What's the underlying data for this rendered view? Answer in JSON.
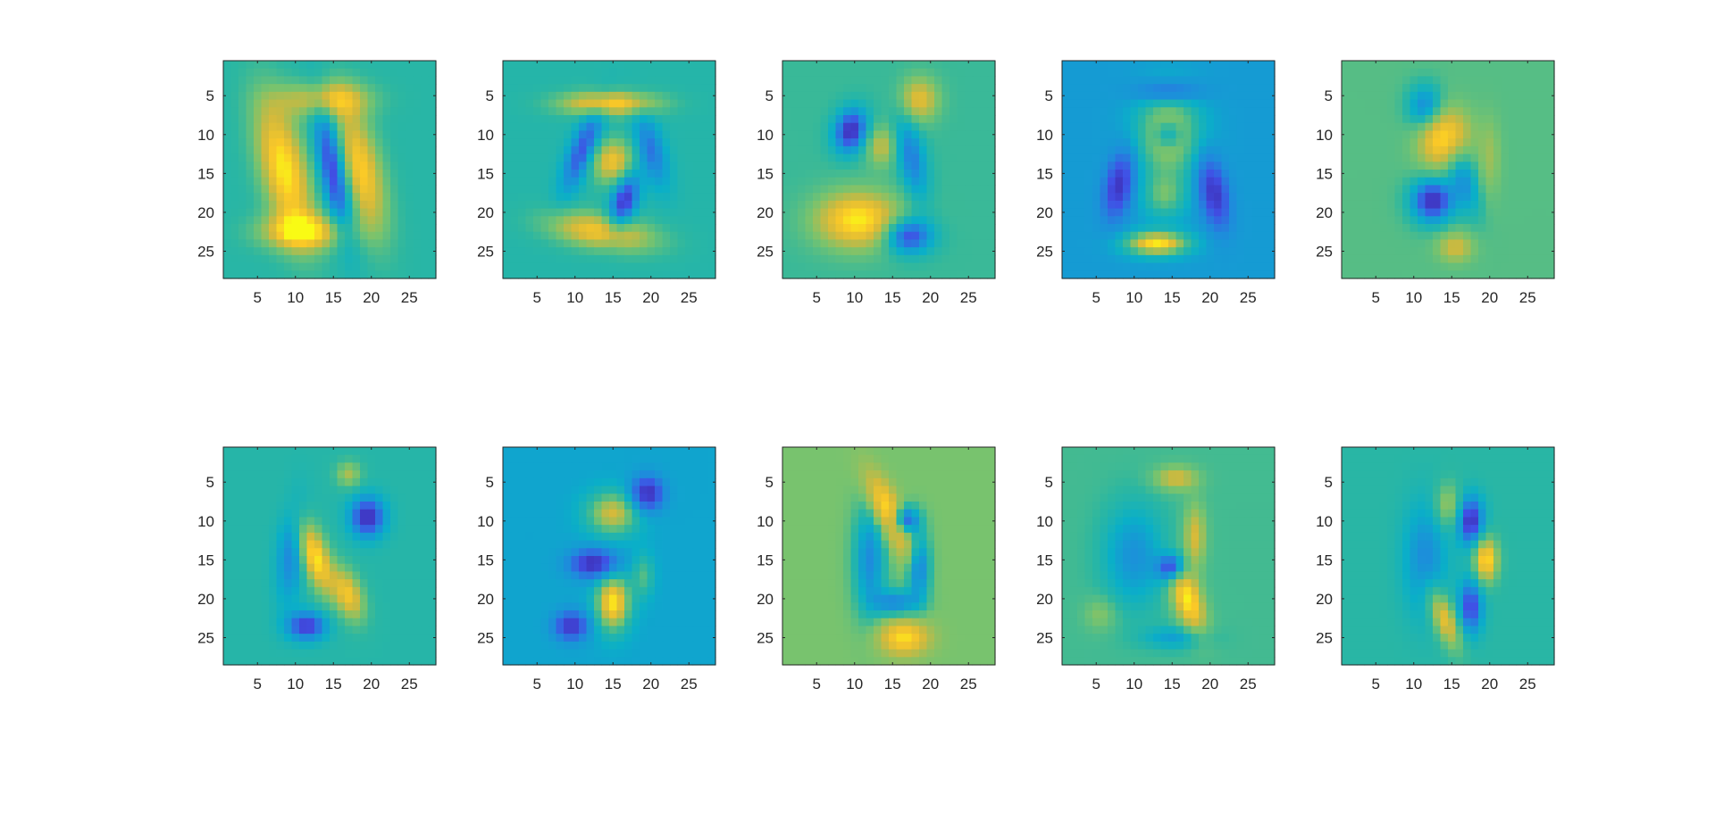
{
  "chart_data": [
    {
      "type": "heatmap",
      "panel": 1,
      "x_ticks": [
        5,
        10,
        15,
        20,
        25
      ],
      "y_ticks": [
        5,
        10,
        15,
        20,
        25
      ],
      "xlim": [
        0.5,
        28.5
      ],
      "ylim": [
        0.5,
        28.5
      ],
      "y_reversed": true,
      "background_color": "#2bb3a8",
      "blobs": [
        {
          "x": 8.5,
          "y": 14.5,
          "sx": 2.2,
          "sy": 6.5,
          "r": -0.25,
          "a": 1.0
        },
        {
          "x": 18.5,
          "y": 14.5,
          "sx": 2.0,
          "sy": 6.0,
          "r": -0.25,
          "a": 0.9
        },
        {
          "x": 14.0,
          "y": 5.5,
          "sx": 4.0,
          "sy": 1.6,
          "r": 0,
          "a": 0.75
        },
        {
          "x": 11.0,
          "y": 22.5,
          "sx": 4.0,
          "sy": 1.6,
          "r": 0,
          "a": 0.85
        },
        {
          "x": 15.0,
          "y": 14.5,
          "sx": 1.3,
          "sy": 6.0,
          "r": -0.2,
          "a": -1.0
        }
      ]
    },
    {
      "type": "heatmap",
      "panel": 2,
      "x_ticks": [
        5,
        10,
        15,
        20,
        25
      ],
      "y_ticks": [
        5,
        10,
        15,
        20,
        25
      ],
      "xlim": [
        0.5,
        28.5
      ],
      "ylim": [
        0.5,
        28.5
      ],
      "y_reversed": true,
      "background_color": "#25b2aa",
      "blobs": [
        {
          "x": 14.5,
          "y": 6.0,
          "sx": 4.5,
          "sy": 1.1,
          "r": 0,
          "a": 0.95
        },
        {
          "x": 15.0,
          "y": 13.5,
          "sx": 2.0,
          "sy": 2.0,
          "r": 0,
          "a": 0.8
        },
        {
          "x": 13.5,
          "y": 22.5,
          "sx": 5.0,
          "sy": 1.6,
          "r": 0.15,
          "a": 0.85
        },
        {
          "x": 11.0,
          "y": 12.0,
          "sx": 1.2,
          "sy": 4.0,
          "r": 0.4,
          "a": -0.8
        },
        {
          "x": 16.5,
          "y": 18.5,
          "sx": 1.2,
          "sy": 2.8,
          "r": 0.3,
          "a": -0.95
        },
        {
          "x": 20.0,
          "y": 12.0,
          "sx": 1.3,
          "sy": 3.5,
          "r": -0.3,
          "a": -0.6
        }
      ]
    },
    {
      "type": "heatmap",
      "panel": 3,
      "x_ticks": [
        5,
        10,
        15,
        20,
        25
      ],
      "y_ticks": [
        5,
        10,
        15,
        20,
        25
      ],
      "xlim": [
        0.5,
        28.5
      ],
      "ylim": [
        0.5,
        28.5
      ],
      "y_reversed": true,
      "background_color": "#3cb99a",
      "blobs": [
        {
          "x": 9.5,
          "y": 9.5,
          "sx": 1.5,
          "sy": 2.0,
          "r": 0.3,
          "a": -1.0
        },
        {
          "x": 18.5,
          "y": 5.5,
          "sx": 1.8,
          "sy": 2.0,
          "r": 0,
          "a": 0.7
        },
        {
          "x": 17.5,
          "y": 13.0,
          "sx": 1.3,
          "sy": 4.0,
          "r": -0.2,
          "a": -0.6
        },
        {
          "x": 10.5,
          "y": 21.0,
          "sx": 4.0,
          "sy": 2.6,
          "r": 0,
          "a": 1.0
        },
        {
          "x": 17.0,
          "y": 23.0,
          "sx": 2.2,
          "sy": 1.6,
          "r": 0,
          "a": -0.95
        },
        {
          "x": 13.5,
          "y": 11.5,
          "sx": 1.3,
          "sy": 1.8,
          "r": 0,
          "a": 0.55
        }
      ]
    },
    {
      "type": "heatmap",
      "panel": 4,
      "x_ticks": [
        5,
        10,
        15,
        20,
        25
      ],
      "y_ticks": [
        5,
        10,
        15,
        20,
        25
      ],
      "xlim": [
        0.5,
        28.5
      ],
      "ylim": [
        0.5,
        28.5
      ],
      "y_reversed": true,
      "background_color": "#0c94d4",
      "blobs": [
        {
          "x": 14.5,
          "y": 10.0,
          "sx": 3.0,
          "sy": 4.0,
          "r": 0,
          "a": 0.75
        },
        {
          "x": 13.0,
          "y": 24.0,
          "sx": 3.0,
          "sy": 1.1,
          "r": 0,
          "a": 1.0
        },
        {
          "x": 14.5,
          "y": 10.0,
          "sx": 1.2,
          "sy": 1.2,
          "r": 0,
          "a": -0.5
        },
        {
          "x": 8.0,
          "y": 16.5,
          "sx": 1.3,
          "sy": 3.0,
          "r": 0.2,
          "a": -0.9
        },
        {
          "x": 20.5,
          "y": 17.5,
          "sx": 1.3,
          "sy": 3.2,
          "r": -0.2,
          "a": -0.9
        },
        {
          "x": 14.5,
          "y": 4.5,
          "sx": 3.0,
          "sy": 1.0,
          "r": 0,
          "a": -0.55
        },
        {
          "x": 14.0,
          "y": 18.0,
          "sx": 2.0,
          "sy": 2.0,
          "r": 0,
          "a": 0.45
        }
      ]
    },
    {
      "type": "heatmap",
      "panel": 5,
      "x_ticks": [
        5,
        10,
        15,
        20,
        25
      ],
      "y_ticks": [
        5,
        10,
        15,
        20,
        25
      ],
      "xlim": [
        0.5,
        28.5
      ],
      "ylim": [
        0.5,
        28.5
      ],
      "y_reversed": true,
      "background_color": "#5bbf8a",
      "blobs": [
        {
          "x": 14.0,
          "y": 10.5,
          "sx": 2.2,
          "sy": 2.6,
          "r": 0.3,
          "a": 1.0
        },
        {
          "x": 12.5,
          "y": 18.5,
          "sx": 2.0,
          "sy": 2.0,
          "r": 0,
          "a": -1.0
        },
        {
          "x": 11.5,
          "y": 6.5,
          "sx": 1.6,
          "sy": 2.0,
          "r": 0,
          "a": -0.6
        },
        {
          "x": 16.5,
          "y": 15.5,
          "sx": 1.3,
          "sy": 3.5,
          "r": -0.3,
          "a": -0.5
        },
        {
          "x": 15.5,
          "y": 24.5,
          "sx": 1.6,
          "sy": 1.3,
          "r": 0,
          "a": 0.55
        },
        {
          "x": 20.0,
          "y": 13.0,
          "sx": 1.0,
          "sy": 3.5,
          "r": 0,
          "a": 0.3
        }
      ]
    },
    {
      "type": "heatmap",
      "panel": 6,
      "x_ticks": [
        5,
        10,
        15,
        20,
        25
      ],
      "y_ticks": [
        5,
        10,
        15,
        20,
        25
      ],
      "xlim": [
        0.5,
        28.5
      ],
      "ylim": [
        0.5,
        28.5
      ],
      "y_reversed": true,
      "background_color": "#2cb3ad",
      "blobs": [
        {
          "x": 12.5,
          "y": 14.5,
          "sx": 1.3,
          "sy": 3.5,
          "r": -0.35,
          "a": 1.0
        },
        {
          "x": 17.0,
          "y": 19.5,
          "sx": 1.3,
          "sy": 2.5,
          "r": -0.35,
          "a": 0.8
        },
        {
          "x": 19.5,
          "y": 9.5,
          "sx": 1.6,
          "sy": 1.8,
          "r": 0,
          "a": -1.0
        },
        {
          "x": 11.5,
          "y": 23.5,
          "sx": 1.8,
          "sy": 1.3,
          "r": 0,
          "a": -0.9
        },
        {
          "x": 9.5,
          "y": 14.0,
          "sx": 1.3,
          "sy": 4.5,
          "r": 0.1,
          "a": -0.55
        },
        {
          "x": 17.0,
          "y": 4.0,
          "sx": 1.2,
          "sy": 1.2,
          "r": 0,
          "a": 0.5
        }
      ]
    },
    {
      "type": "heatmap",
      "panel": 7,
      "x_ticks": [
        5,
        10,
        15,
        20,
        25
      ],
      "y_ticks": [
        5,
        10,
        15,
        20,
        25
      ],
      "xlim": [
        0.5,
        28.5
      ],
      "ylim": [
        0.5,
        28.5
      ],
      "y_reversed": true,
      "background_color": "#0fa4cf",
      "blobs": [
        {
          "x": 19.5,
          "y": 6.5,
          "sx": 1.5,
          "sy": 1.6,
          "r": 0,
          "a": -1.0
        },
        {
          "x": 15.0,
          "y": 9.0,
          "sx": 2.5,
          "sy": 2.0,
          "r": 0,
          "a": 0.75
        },
        {
          "x": 12.5,
          "y": 15.5,
          "sx": 2.2,
          "sy": 1.3,
          "r": 0,
          "a": -1.0
        },
        {
          "x": 15.0,
          "y": 20.5,
          "sx": 1.6,
          "sy": 2.6,
          "r": 0,
          "a": 1.0
        },
        {
          "x": 9.5,
          "y": 23.5,
          "sx": 1.6,
          "sy": 1.3,
          "r": 0,
          "a": -0.9
        },
        {
          "x": 19.0,
          "y": 17.0,
          "sx": 1.0,
          "sy": 2.0,
          "r": 0,
          "a": 0.4
        }
      ]
    },
    {
      "type": "heatmap",
      "panel": 8,
      "x_ticks": [
        5,
        10,
        15,
        20,
        25
      ],
      "y_ticks": [
        5,
        10,
        15,
        20,
        25
      ],
      "xlim": [
        0.5,
        28.5
      ],
      "ylim": [
        0.5,
        28.5
      ],
      "y_reversed": true,
      "background_color": "#7dc373",
      "blobs": [
        {
          "x": 14.5,
          "y": 9.0,
          "sx": 1.2,
          "sy": 3.8,
          "r": -0.45,
          "a": 1.0
        },
        {
          "x": 16.5,
          "y": 10.0,
          "sx": 1.3,
          "sy": 1.3,
          "r": 0,
          "a": -1.0
        },
        {
          "x": 16.5,
          "y": 25.0,
          "sx": 2.2,
          "sy": 1.5,
          "r": 0,
          "a": 0.9
        },
        {
          "x": 18.5,
          "y": 16.0,
          "sx": 1.0,
          "sy": 3.0,
          "r": 0,
          "a": -0.7
        },
        {
          "x": 12.0,
          "y": 15.0,
          "sx": 1.5,
          "sy": 5.0,
          "r": 0,
          "a": -0.6
        },
        {
          "x": 15.5,
          "y": 20.5,
          "sx": 2.0,
          "sy": 1.2,
          "r": 0,
          "a": -0.6
        }
      ]
    },
    {
      "type": "heatmap",
      "panel": 9,
      "x_ticks": [
        5,
        10,
        15,
        20,
        25
      ],
      "y_ticks": [
        5,
        10,
        15,
        20,
        25
      ],
      "xlim": [
        0.5,
        28.5
      ],
      "ylim": [
        0.5,
        28.5
      ],
      "y_reversed": true,
      "background_color": "#47bb98",
      "blobs": [
        {
          "x": 17.0,
          "y": 20.0,
          "sx": 1.3,
          "sy": 3.2,
          "r": -0.35,
          "a": 1.0
        },
        {
          "x": 18.0,
          "y": 12.0,
          "sx": 1.0,
          "sy": 3.0,
          "r": 0,
          "a": 0.6
        },
        {
          "x": 15.5,
          "y": 4.5,
          "sx": 2.0,
          "sy": 1.1,
          "r": 0,
          "a": 0.6
        },
        {
          "x": 15.0,
          "y": 16.0,
          "sx": 1.3,
          "sy": 1.3,
          "r": 0,
          "a": -1.0
        },
        {
          "x": 10.0,
          "y": 14.5,
          "sx": 2.8,
          "sy": 4.5,
          "r": 0,
          "a": -0.5
        },
        {
          "x": 15.5,
          "y": 25.0,
          "sx": 3.0,
          "sy": 1.0,
          "r": 0,
          "a": -0.4
        },
        {
          "x": 5.5,
          "y": 22.0,
          "sx": 1.5,
          "sy": 1.5,
          "r": 0,
          "a": 0.3
        }
      ]
    },
    {
      "type": "heatmap",
      "panel": 10,
      "x_ticks": [
        5,
        10,
        15,
        20,
        25
      ],
      "y_ticks": [
        5,
        10,
        15,
        20,
        25
      ],
      "xlim": [
        0.5,
        28.5
      ],
      "ylim": [
        0.5,
        28.5
      ],
      "y_reversed": true,
      "background_color": "#2bb3a5",
      "blobs": [
        {
          "x": 19.5,
          "y": 15.0,
          "sx": 1.1,
          "sy": 2.0,
          "r": 0,
          "a": 1.0
        },
        {
          "x": 17.5,
          "y": 10.0,
          "sx": 1.2,
          "sy": 2.2,
          "r": 0,
          "a": -1.0
        },
        {
          "x": 17.5,
          "y": 21.0,
          "sx": 1.1,
          "sy": 2.5,
          "r": 0,
          "a": -0.85
        },
        {
          "x": 14.0,
          "y": 22.5,
          "sx": 1.1,
          "sy": 3.0,
          "r": -0.4,
          "a": 0.8
        },
        {
          "x": 11.5,
          "y": 15.0,
          "sx": 2.0,
          "sy": 5.0,
          "r": 0,
          "a": -0.5
        },
        {
          "x": 14.5,
          "y": 8.0,
          "sx": 1.2,
          "sy": 2.0,
          "r": 0,
          "a": 0.5
        }
      ]
    }
  ]
}
